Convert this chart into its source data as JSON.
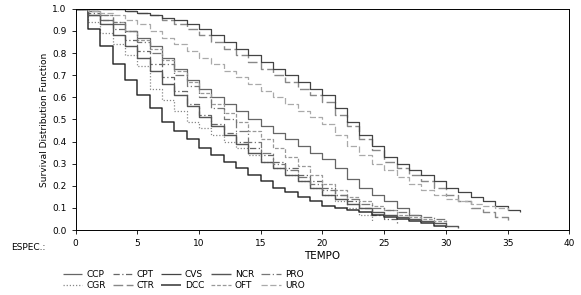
{
  "xlabel": "TEMPO",
  "ylabel": "Survival Distribution Function",
  "xlim": [
    0,
    40
  ],
  "ylim": [
    0.0,
    1.0
  ],
  "xticks": [
    0,
    5,
    10,
    15,
    20,
    25,
    30,
    35,
    40
  ],
  "yticks": [
    0.0,
    0.1,
    0.2,
    0.3,
    0.4,
    0.5,
    0.6,
    0.7,
    0.8,
    0.9,
    1.0
  ],
  "series": {
    "CCP": {
      "x": [
        0,
        1,
        2,
        3,
        4,
        5,
        6,
        7,
        8,
        9,
        10,
        11,
        12,
        13,
        14,
        15,
        16,
        17,
        18,
        19,
        20,
        21,
        22,
        23,
        24,
        25,
        26,
        27,
        28
      ],
      "y": [
        1.0,
        0.97,
        0.95,
        0.93,
        0.9,
        0.87,
        0.83,
        0.78,
        0.73,
        0.68,
        0.64,
        0.6,
        0.57,
        0.54,
        0.5,
        0.47,
        0.44,
        0.41,
        0.38,
        0.35,
        0.32,
        0.28,
        0.23,
        0.19,
        0.16,
        0.13,
        0.1,
        0.07,
        0.05
      ]
    },
    "CGR": {
      "x": [
        0,
        1,
        2,
        3,
        4,
        5,
        6,
        7,
        8,
        9,
        10,
        11,
        12,
        13,
        14,
        15,
        16,
        17,
        18,
        19,
        20,
        21,
        22,
        23,
        24
      ],
      "y": [
        1.0,
        0.94,
        0.89,
        0.84,
        0.79,
        0.74,
        0.64,
        0.59,
        0.54,
        0.49,
        0.46,
        0.43,
        0.4,
        0.37,
        0.34,
        0.31,
        0.28,
        0.25,
        0.22,
        0.19,
        0.16,
        0.13,
        0.1,
        0.07,
        0.04
      ]
    },
    "CPT": {
      "x": [
        0,
        1,
        2,
        3,
        4,
        5,
        6,
        7,
        8,
        9,
        10,
        11,
        12,
        13,
        14,
        15,
        16,
        17,
        18,
        19,
        20,
        21,
        22,
        23,
        24,
        25,
        26
      ],
      "y": [
        1.0,
        0.98,
        0.95,
        0.91,
        0.86,
        0.81,
        0.75,
        0.69,
        0.63,
        0.57,
        0.52,
        0.48,
        0.44,
        0.4,
        0.37,
        0.34,
        0.31,
        0.28,
        0.25,
        0.22,
        0.19,
        0.16,
        0.13,
        0.1,
        0.07,
        0.05,
        0.03
      ]
    },
    "CTR": {
      "x": [
        0,
        1,
        2,
        3,
        4,
        5,
        6,
        7,
        8,
        9,
        10,
        11,
        12,
        13,
        14,
        15,
        16,
        17,
        18,
        19,
        20,
        21,
        22,
        23,
        24,
        25,
        26,
        27,
        28,
        29,
        30,
        31,
        32,
        33,
        34,
        35
      ],
      "y": [
        1.0,
        1.0,
        1.0,
        1.0,
        0.99,
        0.98,
        0.97,
        0.95,
        0.93,
        0.91,
        0.88,
        0.85,
        0.82,
        0.79,
        0.76,
        0.73,
        0.7,
        0.67,
        0.64,
        0.61,
        0.58,
        0.52,
        0.47,
        0.41,
        0.36,
        0.31,
        0.28,
        0.25,
        0.22,
        0.19,
        0.16,
        0.13,
        0.1,
        0.08,
        0.06,
        0.04
      ]
    },
    "CVS": {
      "x": [
        0,
        1,
        2,
        3,
        4,
        5,
        6,
        7,
        8,
        9,
        10,
        11,
        12,
        13,
        14,
        15,
        16,
        17,
        18,
        19,
        20,
        21,
        22,
        23,
        24,
        25,
        26,
        27,
        28,
        29,
        30,
        31,
        32,
        33,
        34,
        35,
        36
      ],
      "y": [
        1.0,
        1.0,
        1.0,
        1.0,
        0.99,
        0.98,
        0.97,
        0.96,
        0.95,
        0.93,
        0.91,
        0.88,
        0.85,
        0.82,
        0.79,
        0.76,
        0.73,
        0.7,
        0.67,
        0.64,
        0.61,
        0.55,
        0.49,
        0.43,
        0.38,
        0.33,
        0.3,
        0.27,
        0.25,
        0.22,
        0.19,
        0.17,
        0.15,
        0.13,
        0.11,
        0.09,
        0.08
      ]
    },
    "DCC": {
      "x": [
        0,
        1,
        2,
        3,
        4,
        5,
        6,
        7,
        8,
        9,
        10,
        11,
        12,
        13,
        14,
        15,
        16,
        17,
        18,
        19,
        20,
        21,
        22,
        23,
        24,
        25,
        26,
        27,
        28,
        29,
        30
      ],
      "y": [
        1.0,
        0.91,
        0.83,
        0.75,
        0.68,
        0.61,
        0.55,
        0.49,
        0.45,
        0.41,
        0.37,
        0.34,
        0.31,
        0.28,
        0.25,
        0.22,
        0.19,
        0.17,
        0.15,
        0.13,
        0.11,
        0.1,
        0.09,
        0.08,
        0.07,
        0.06,
        0.05,
        0.04,
        0.03,
        0.02,
        0.01
      ]
    },
    "NCR": {
      "x": [
        0,
        1,
        2,
        3,
        4,
        5,
        6,
        7,
        8,
        9,
        10,
        11,
        12,
        13,
        14,
        15,
        16,
        17,
        18,
        19,
        20,
        21,
        22,
        23,
        24,
        25,
        26,
        27,
        28,
        29,
        30,
        31
      ],
      "y": [
        1.0,
        0.97,
        0.93,
        0.88,
        0.83,
        0.78,
        0.72,
        0.66,
        0.61,
        0.56,
        0.51,
        0.47,
        0.43,
        0.39,
        0.35,
        0.31,
        0.28,
        0.25,
        0.22,
        0.19,
        0.16,
        0.14,
        0.12,
        0.1,
        0.08,
        0.07,
        0.06,
        0.05,
        0.04,
        0.03,
        0.02,
        0.01
      ]
    },
    "OFT": {
      "x": [
        0,
        1,
        2,
        3,
        4,
        5,
        6,
        7,
        8,
        9,
        10,
        11,
        12,
        13,
        14,
        15,
        16,
        17,
        18,
        19,
        20,
        21,
        22,
        23,
        24,
        25,
        26,
        27,
        28,
        29,
        30
      ],
      "y": [
        1.0,
        0.99,
        0.97,
        0.94,
        0.9,
        0.86,
        0.82,
        0.77,
        0.72,
        0.67,
        0.62,
        0.57,
        0.53,
        0.49,
        0.45,
        0.41,
        0.37,
        0.33,
        0.29,
        0.25,
        0.21,
        0.18,
        0.15,
        0.13,
        0.11,
        0.09,
        0.07,
        0.06,
        0.05,
        0.04,
        0.03
      ]
    },
    "PRO": {
      "x": [
        0,
        1,
        2,
        3,
        4,
        5,
        6,
        7,
        8,
        9,
        10,
        11,
        12,
        13,
        14,
        15,
        16,
        17,
        18,
        19,
        20,
        21,
        22,
        23,
        24,
        25,
        26,
        27,
        28,
        29,
        30
      ],
      "y": [
        1.0,
        0.99,
        0.97,
        0.94,
        0.9,
        0.85,
        0.8,
        0.75,
        0.7,
        0.65,
        0.6,
        0.55,
        0.5,
        0.45,
        0.4,
        0.35,
        0.3,
        0.27,
        0.24,
        0.21,
        0.18,
        0.16,
        0.14,
        0.12,
        0.1,
        0.09,
        0.08,
        0.07,
        0.06,
        0.05,
        0.04
      ]
    },
    "URO": {
      "x": [
        0,
        1,
        2,
        3,
        4,
        5,
        6,
        7,
        8,
        9,
        10,
        11,
        12,
        13,
        14,
        15,
        16,
        17,
        18,
        19,
        20,
        21,
        22,
        23,
        24,
        25,
        26,
        27,
        28,
        29,
        30,
        31,
        32,
        33,
        34,
        35
      ],
      "y": [
        1.0,
        0.99,
        0.98,
        0.97,
        0.95,
        0.93,
        0.9,
        0.87,
        0.84,
        0.81,
        0.78,
        0.75,
        0.72,
        0.69,
        0.66,
        0.63,
        0.6,
        0.57,
        0.54,
        0.51,
        0.48,
        0.43,
        0.38,
        0.34,
        0.3,
        0.27,
        0.24,
        0.21,
        0.18,
        0.16,
        0.14,
        0.13,
        0.12,
        0.11,
        0.1,
        0.09
      ]
    }
  }
}
